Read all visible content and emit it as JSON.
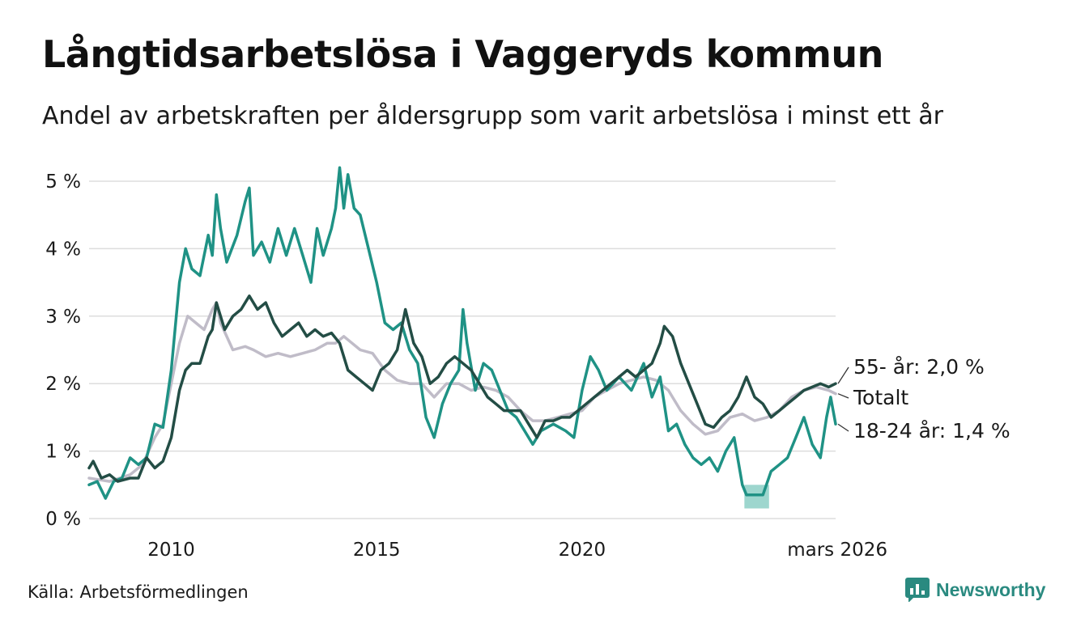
{
  "header": {
    "title": "Långtidsarbetslösa i Vaggeryds kommun",
    "subtitle": "Andel av arbetskraften per åldersgrupp som varit arbetslösa i minst ett år"
  },
  "footer": {
    "source": "Källa: Arbetsförmedlingen",
    "brand": "Newsworthy"
  },
  "colors": {
    "youth": "#1f9285",
    "senior": "#234d45",
    "total": "#c0bcc8",
    "grid": "#dddddd",
    "band": "#7cc8bd"
  },
  "chart_data": {
    "type": "line",
    "title": "Långtidsarbetslösa i Vaggeryds kommun",
    "subtitle": "Andel av arbetskraften per åldersgrupp som varit arbetslösa i minst ett år",
    "xlabel": "",
    "ylabel": "",
    "ylim": [
      0,
      5
    ],
    "xlim": [
      2008.0,
      2026.17
    ],
    "y_ticks": [
      {
        "value": 0,
        "label": "0 %"
      },
      {
        "value": 1,
        "label": "1 %"
      },
      {
        "value": 2,
        "label": "2 %"
      },
      {
        "value": 3,
        "label": "3 %"
      },
      {
        "value": 4,
        "label": "4 %"
      },
      {
        "value": 5,
        "label": "5 %"
      }
    ],
    "x_ticks": [
      {
        "value": 2010,
        "label": "2010"
      },
      {
        "value": 2015,
        "label": "2015"
      },
      {
        "value": 2020,
        "label": "2020"
      },
      {
        "value": 2026.17,
        "label": "mars 2026"
      }
    ],
    "grid": true,
    "series": [
      {
        "name": "Totalt",
        "key": "total",
        "end_label": "Totalt",
        "points": [
          [
            2008.0,
            0.6
          ],
          [
            2008.5,
            0.55
          ],
          [
            2009.0,
            0.65
          ],
          [
            2009.3,
            0.8
          ],
          [
            2009.6,
            1.2
          ],
          [
            2009.8,
            1.4
          ],
          [
            2010.0,
            2.0
          ],
          [
            2010.2,
            2.6
          ],
          [
            2010.4,
            3.0
          ],
          [
            2010.6,
            2.9
          ],
          [
            2010.8,
            2.8
          ],
          [
            2011.0,
            3.1
          ],
          [
            2011.1,
            3.2
          ],
          [
            2011.2,
            2.9
          ],
          [
            2011.5,
            2.5
          ],
          [
            2011.8,
            2.55
          ],
          [
            2012.0,
            2.5
          ],
          [
            2012.3,
            2.4
          ],
          [
            2012.6,
            2.45
          ],
          [
            2012.9,
            2.4
          ],
          [
            2013.2,
            2.45
          ],
          [
            2013.5,
            2.5
          ],
          [
            2013.8,
            2.6
          ],
          [
            2014.0,
            2.6
          ],
          [
            2014.2,
            2.7
          ],
          [
            2014.4,
            2.6
          ],
          [
            2014.6,
            2.5
          ],
          [
            2014.9,
            2.45
          ],
          [
            2015.2,
            2.2
          ],
          [
            2015.5,
            2.05
          ],
          [
            2015.8,
            2.0
          ],
          [
            2016.1,
            2.0
          ],
          [
            2016.4,
            1.8
          ],
          [
            2016.7,
            2.0
          ],
          [
            2017.0,
            2.0
          ],
          [
            2017.3,
            1.9
          ],
          [
            2017.6,
            1.95
          ],
          [
            2017.9,
            1.9
          ],
          [
            2018.2,
            1.8
          ],
          [
            2018.5,
            1.6
          ],
          [
            2018.8,
            1.45
          ],
          [
            2019.1,
            1.45
          ],
          [
            2019.4,
            1.5
          ],
          [
            2019.7,
            1.55
          ],
          [
            2020.0,
            1.6
          ],
          [
            2020.3,
            1.8
          ],
          [
            2020.6,
            1.9
          ],
          [
            2020.9,
            2.0
          ],
          [
            2021.2,
            2.05
          ],
          [
            2021.5,
            2.1
          ],
          [
            2021.8,
            2.05
          ],
          [
            2022.1,
            1.9
          ],
          [
            2022.4,
            1.6
          ],
          [
            2022.7,
            1.4
          ],
          [
            2023.0,
            1.25
          ],
          [
            2023.3,
            1.3
          ],
          [
            2023.6,
            1.5
          ],
          [
            2023.9,
            1.55
          ],
          [
            2024.2,
            1.45
          ],
          [
            2024.5,
            1.5
          ],
          [
            2024.8,
            1.6
          ],
          [
            2025.1,
            1.8
          ],
          [
            2025.4,
            1.9
          ],
          [
            2025.7,
            1.95
          ],
          [
            2026.0,
            1.9
          ],
          [
            2026.17,
            1.85
          ]
        ]
      },
      {
        "name": "18-24 år",
        "key": "youth",
        "end_label": "18-24 år: 1,4 %",
        "points": [
          [
            2008.0,
            0.5
          ],
          [
            2008.2,
            0.55
          ],
          [
            2008.4,
            0.3
          ],
          [
            2008.6,
            0.55
          ],
          [
            2008.8,
            0.6
          ],
          [
            2009.0,
            0.9
          ],
          [
            2009.2,
            0.8
          ],
          [
            2009.4,
            0.9
          ],
          [
            2009.6,
            1.4
          ],
          [
            2009.8,
            1.35
          ],
          [
            2010.0,
            2.2
          ],
          [
            2010.2,
            3.5
          ],
          [
            2010.35,
            4.0
          ],
          [
            2010.5,
            3.7
          ],
          [
            2010.7,
            3.6
          ],
          [
            2010.9,
            4.2
          ],
          [
            2011.0,
            3.9
          ],
          [
            2011.1,
            4.8
          ],
          [
            2011.2,
            4.3
          ],
          [
            2011.35,
            3.8
          ],
          [
            2011.6,
            4.2
          ],
          [
            2011.8,
            4.7
          ],
          [
            2011.9,
            4.9
          ],
          [
            2012.0,
            3.9
          ],
          [
            2012.2,
            4.1
          ],
          [
            2012.4,
            3.8
          ],
          [
            2012.6,
            4.3
          ],
          [
            2012.8,
            3.9
          ],
          [
            2013.0,
            4.3
          ],
          [
            2013.2,
            3.9
          ],
          [
            2013.4,
            3.5
          ],
          [
            2013.55,
            4.3
          ],
          [
            2013.7,
            3.9
          ],
          [
            2013.9,
            4.3
          ],
          [
            2014.0,
            4.6
          ],
          [
            2014.1,
            5.2
          ],
          [
            2014.2,
            4.6
          ],
          [
            2014.3,
            5.1
          ],
          [
            2014.45,
            4.6
          ],
          [
            2014.6,
            4.5
          ],
          [
            2014.8,
            4.0
          ],
          [
            2015.0,
            3.5
          ],
          [
            2015.2,
            2.9
          ],
          [
            2015.4,
            2.8
          ],
          [
            2015.6,
            2.9
          ],
          [
            2015.8,
            2.5
          ],
          [
            2016.0,
            2.3
          ],
          [
            2016.2,
            1.5
          ],
          [
            2016.4,
            1.2
          ],
          [
            2016.6,
            1.7
          ],
          [
            2016.8,
            2.0
          ],
          [
            2017.0,
            2.2
          ],
          [
            2017.1,
            3.1
          ],
          [
            2017.2,
            2.6
          ],
          [
            2017.4,
            1.9
          ],
          [
            2017.6,
            2.3
          ],
          [
            2017.8,
            2.2
          ],
          [
            2018.0,
            1.9
          ],
          [
            2018.2,
            1.6
          ],
          [
            2018.4,
            1.5
          ],
          [
            2018.6,
            1.3
          ],
          [
            2018.8,
            1.1
          ],
          [
            2019.0,
            1.3
          ],
          [
            2019.3,
            1.4
          ],
          [
            2019.6,
            1.3
          ],
          [
            2019.8,
            1.2
          ],
          [
            2020.0,
            1.9
          ],
          [
            2020.2,
            2.4
          ],
          [
            2020.4,
            2.2
          ],
          [
            2020.6,
            1.9
          ],
          [
            2020.9,
            2.1
          ],
          [
            2021.2,
            1.9
          ],
          [
            2021.5,
            2.3
          ],
          [
            2021.7,
            1.8
          ],
          [
            2021.9,
            2.1
          ],
          [
            2022.1,
            1.3
          ],
          [
            2022.3,
            1.4
          ],
          [
            2022.5,
            1.1
          ],
          [
            2022.7,
            0.9
          ],
          [
            2022.9,
            0.8
          ],
          [
            2023.1,
            0.9
          ],
          [
            2023.3,
            0.7
          ],
          [
            2023.5,
            1.0
          ],
          [
            2023.7,
            1.2
          ],
          [
            2023.9,
            0.5
          ],
          [
            2024.0,
            0.35
          ],
          [
            2024.2,
            0.35
          ],
          [
            2024.4,
            0.35
          ],
          [
            2024.6,
            0.7
          ],
          [
            2024.8,
            0.8
          ],
          [
            2025.0,
            0.9
          ],
          [
            2025.2,
            1.2
          ],
          [
            2025.4,
            1.5
          ],
          [
            2025.6,
            1.1
          ],
          [
            2025.8,
            0.9
          ],
          [
            2025.95,
            1.5
          ],
          [
            2026.05,
            1.8
          ],
          [
            2026.17,
            1.4
          ]
        ]
      },
      {
        "name": "55- år",
        "key": "senior",
        "end_label": "55- år: 2,0 %",
        "points": [
          [
            2008.0,
            0.75
          ],
          [
            2008.1,
            0.85
          ],
          [
            2008.3,
            0.6
          ],
          [
            2008.5,
            0.65
          ],
          [
            2008.7,
            0.55
          ],
          [
            2009.0,
            0.6
          ],
          [
            2009.2,
            0.6
          ],
          [
            2009.4,
            0.9
          ],
          [
            2009.6,
            0.75
          ],
          [
            2009.8,
            0.85
          ],
          [
            2010.0,
            1.2
          ],
          [
            2010.2,
            1.9
          ],
          [
            2010.35,
            2.2
          ],
          [
            2010.5,
            2.3
          ],
          [
            2010.7,
            2.3
          ],
          [
            2010.9,
            2.7
          ],
          [
            2011.0,
            2.8
          ],
          [
            2011.1,
            3.2
          ],
          [
            2011.3,
            2.8
          ],
          [
            2011.5,
            3.0
          ],
          [
            2011.7,
            3.1
          ],
          [
            2011.9,
            3.3
          ],
          [
            2012.1,
            3.1
          ],
          [
            2012.3,
            3.2
          ],
          [
            2012.5,
            2.9
          ],
          [
            2012.7,
            2.7
          ],
          [
            2012.9,
            2.8
          ],
          [
            2013.1,
            2.9
          ],
          [
            2013.3,
            2.7
          ],
          [
            2013.5,
            2.8
          ],
          [
            2013.7,
            2.7
          ],
          [
            2013.9,
            2.75
          ],
          [
            2014.1,
            2.6
          ],
          [
            2014.3,
            2.2
          ],
          [
            2014.5,
            2.1
          ],
          [
            2014.7,
            2.0
          ],
          [
            2014.9,
            1.9
          ],
          [
            2015.1,
            2.2
          ],
          [
            2015.3,
            2.3
          ],
          [
            2015.5,
            2.5
          ],
          [
            2015.7,
            3.1
          ],
          [
            2015.9,
            2.6
          ],
          [
            2016.1,
            2.4
          ],
          [
            2016.3,
            2.0
          ],
          [
            2016.5,
            2.1
          ],
          [
            2016.7,
            2.3
          ],
          [
            2016.9,
            2.4
          ],
          [
            2017.1,
            2.3
          ],
          [
            2017.3,
            2.2
          ],
          [
            2017.5,
            2.0
          ],
          [
            2017.7,
            1.8
          ],
          [
            2017.9,
            1.7
          ],
          [
            2018.1,
            1.6
          ],
          [
            2018.3,
            1.6
          ],
          [
            2018.5,
            1.6
          ],
          [
            2018.7,
            1.4
          ],
          [
            2018.9,
            1.2
          ],
          [
            2019.1,
            1.45
          ],
          [
            2019.3,
            1.45
          ],
          [
            2019.5,
            1.5
          ],
          [
            2019.7,
            1.5
          ],
          [
            2019.9,
            1.6
          ],
          [
            2020.1,
            1.7
          ],
          [
            2020.3,
            1.8
          ],
          [
            2020.5,
            1.9
          ],
          [
            2020.7,
            2.0
          ],
          [
            2020.9,
            2.1
          ],
          [
            2021.1,
            2.2
          ],
          [
            2021.3,
            2.1
          ],
          [
            2021.5,
            2.2
          ],
          [
            2021.7,
            2.3
          ],
          [
            2021.9,
            2.6
          ],
          [
            2022.0,
            2.85
          ],
          [
            2022.2,
            2.7
          ],
          [
            2022.4,
            2.3
          ],
          [
            2022.6,
            2.0
          ],
          [
            2022.8,
            1.7
          ],
          [
            2023.0,
            1.4
          ],
          [
            2023.2,
            1.35
          ],
          [
            2023.4,
            1.5
          ],
          [
            2023.6,
            1.6
          ],
          [
            2023.8,
            1.8
          ],
          [
            2024.0,
            2.1
          ],
          [
            2024.2,
            1.8
          ],
          [
            2024.4,
            1.7
          ],
          [
            2024.6,
            1.5
          ],
          [
            2024.8,
            1.6
          ],
          [
            2025.0,
            1.7
          ],
          [
            2025.2,
            1.8
          ],
          [
            2025.4,
            1.9
          ],
          [
            2025.6,
            1.95
          ],
          [
            2025.8,
            2.0
          ],
          [
            2026.0,
            1.95
          ],
          [
            2026.17,
            2.0
          ]
        ]
      }
    ],
    "uncertainty_band": {
      "series": "18-24 år",
      "x_range": [
        2023.95,
        2024.55
      ],
      "low": 0.15,
      "high": 0.5
    }
  }
}
